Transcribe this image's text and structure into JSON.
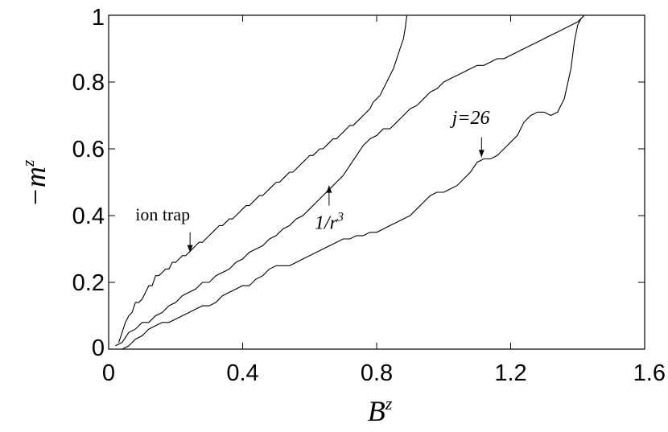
{
  "chart_data": {
    "type": "line",
    "xlabel": {
      "base": "B",
      "sup": "z"
    },
    "ylabel": {
      "base": "−m",
      "sup": "z"
    },
    "xlim": [
      0,
      1.6
    ],
    "ylim": [
      0,
      1
    ],
    "xticks": [
      0,
      0.4,
      0.8,
      1.2,
      1.6
    ],
    "xtick_labels": [
      "0",
      "0.4",
      "0.8",
      "1.2",
      "1.6"
    ],
    "yticks": [
      0,
      0.2,
      0.4,
      0.6,
      0.8,
      1
    ],
    "ytick_labels": [
      "0",
      "0.2",
      "0.4",
      "0.6",
      "0.8",
      "1"
    ],
    "grid": false,
    "legend": "none",
    "annotations": [
      {
        "id": "ion-trap",
        "text": "ion trap",
        "style": "roman",
        "arrow_tip": [
          0.243,
          0.29
        ],
        "arrow_tail": [
          0.243,
          0.35
        ],
        "text_at": [
          0.08,
          0.385
        ]
      },
      {
        "id": "inverse-cube",
        "text": "1/r",
        "sup": "3",
        "style": "italic",
        "arrow_tip": [
          0.658,
          0.49
        ],
        "arrow_tail": [
          0.658,
          0.43
        ],
        "text_at": [
          0.615,
          0.36
        ]
      },
      {
        "id": "j26",
        "text": "j=26",
        "style": "italic",
        "arrow_tip": [
          1.113,
          0.575
        ],
        "arrow_tail": [
          1.113,
          0.635
        ],
        "text_at": [
          1.025,
          0.675
        ]
      }
    ],
    "series": [
      {
        "x": [
          0.03,
          0.04,
          0.05,
          0.06,
          0.07,
          0.08,
          0.09,
          0.1,
          0.11,
          0.12,
          0.13,
          0.14,
          0.15,
          0.16,
          0.17,
          0.18,
          0.19,
          0.2,
          0.21,
          0.22,
          0.23,
          0.24,
          0.25,
          0.26,
          0.27,
          0.28,
          0.29,
          0.3,
          0.31,
          0.32,
          0.33,
          0.34,
          0.35,
          0.36,
          0.37,
          0.38,
          0.39,
          0.4,
          0.41,
          0.42,
          0.43,
          0.44,
          0.45,
          0.46,
          0.47,
          0.48,
          0.49,
          0.5,
          0.51,
          0.52,
          0.53,
          0.54,
          0.55,
          0.56,
          0.57,
          0.58,
          0.59,
          0.6,
          0.61,
          0.62,
          0.63,
          0.64,
          0.65,
          0.66,
          0.67,
          0.68,
          0.69,
          0.7,
          0.71,
          0.72,
          0.73,
          0.74,
          0.75,
          0.76,
          0.77,
          0.78,
          0.79,
          0.8,
          0.81,
          0.82,
          0.83,
          0.84,
          0.85,
          0.86,
          0.87,
          0.88,
          0.885,
          0.89,
          0.9,
          1.0,
          1.1,
          1.2,
          1.3,
          1.4,
          1.5,
          1.6
        ],
        "y": [
          0.02,
          0.05,
          0.08,
          0.1,
          0.11,
          0.14,
          0.14,
          0.15,
          0.17,
          0.19,
          0.19,
          0.22,
          0.22,
          0.23,
          0.24,
          0.24,
          0.26,
          0.26,
          0.27,
          0.28,
          0.28,
          0.29,
          0.3,
          0.31,
          0.32,
          0.32,
          0.33,
          0.34,
          0.35,
          0.36,
          0.37,
          0.37,
          0.38,
          0.39,
          0.39,
          0.4,
          0.41,
          0.42,
          0.43,
          0.43,
          0.44,
          0.45,
          0.46,
          0.46,
          0.47,
          0.48,
          0.49,
          0.5,
          0.5,
          0.51,
          0.52,
          0.53,
          0.53,
          0.54,
          0.55,
          0.56,
          0.57,
          0.58,
          0.58,
          0.59,
          0.6,
          0.6,
          0.61,
          0.62,
          0.63,
          0.63,
          0.64,
          0.65,
          0.66,
          0.67,
          0.67,
          0.68,
          0.69,
          0.7,
          0.71,
          0.72,
          0.74,
          0.75,
          0.76,
          0.78,
          0.8,
          0.82,
          0.84,
          0.87,
          0.9,
          0.93,
          0.96,
          1.0,
          1.0,
          1.0,
          1.0,
          1.0,
          1.0,
          1.0,
          1.0,
          1.0
        ]
      },
      {
        "x": [
          0.02,
          0.04,
          0.06,
          0.08,
          0.1,
          0.12,
          0.14,
          0.16,
          0.18,
          0.2,
          0.22,
          0.24,
          0.26,
          0.28,
          0.3,
          0.32,
          0.34,
          0.36,
          0.38,
          0.4,
          0.42,
          0.44,
          0.46,
          0.48,
          0.5,
          0.52,
          0.54,
          0.56,
          0.58,
          0.6,
          0.62,
          0.64,
          0.66,
          0.68,
          0.7,
          0.72,
          0.74,
          0.76,
          0.78,
          0.8,
          0.82,
          0.84,
          0.86,
          0.88,
          0.9,
          0.92,
          0.94,
          0.96,
          0.98,
          1.0,
          1.02,
          1.04,
          1.06,
          1.08,
          1.1,
          1.12,
          1.14,
          1.16,
          1.18,
          1.2,
          1.22,
          1.24,
          1.26,
          1.28,
          1.3,
          1.32,
          1.34,
          1.36,
          1.38,
          1.4,
          1.42,
          1.44,
          1.46,
          1.48,
          1.5,
          1.52,
          1.54,
          1.56,
          1.58,
          1.6
        ],
        "y": [
          0.01,
          0.02,
          0.05,
          0.06,
          0.08,
          0.08,
          0.1,
          0.11,
          0.13,
          0.14,
          0.16,
          0.17,
          0.18,
          0.2,
          0.2,
          0.22,
          0.23,
          0.24,
          0.26,
          0.27,
          0.29,
          0.3,
          0.31,
          0.33,
          0.34,
          0.36,
          0.37,
          0.39,
          0.4,
          0.42,
          0.44,
          0.46,
          0.48,
          0.5,
          0.52,
          0.55,
          0.58,
          0.61,
          0.63,
          0.64,
          0.66,
          0.66,
          0.68,
          0.7,
          0.72,
          0.73,
          0.75,
          0.77,
          0.78,
          0.8,
          0.81,
          0.82,
          0.83,
          0.84,
          0.85,
          0.85,
          0.86,
          0.87,
          0.87,
          0.88,
          0.89,
          0.9,
          0.91,
          0.92,
          0.93,
          0.94,
          0.95,
          0.96,
          0.97,
          0.98,
          1.0,
          1.0,
          1.0,
          1.0,
          1.0,
          1.0,
          1.0,
          1.0,
          1.0,
          1.0
        ]
      },
      {
        "x": [
          0.02,
          0.04,
          0.06,
          0.08,
          0.1,
          0.12,
          0.14,
          0.16,
          0.18,
          0.2,
          0.22,
          0.24,
          0.26,
          0.28,
          0.3,
          0.32,
          0.34,
          0.36,
          0.38,
          0.4,
          0.42,
          0.44,
          0.46,
          0.48,
          0.5,
          0.52,
          0.54,
          0.56,
          0.58,
          0.6,
          0.62,
          0.64,
          0.66,
          0.68,
          0.7,
          0.72,
          0.74,
          0.76,
          0.78,
          0.8,
          0.82,
          0.84,
          0.86,
          0.88,
          0.9,
          0.92,
          0.94,
          0.96,
          0.98,
          1.0,
          1.02,
          1.04,
          1.06,
          1.08,
          1.1,
          1.12,
          1.14,
          1.16,
          1.18,
          1.2,
          1.22,
          1.24,
          1.26,
          1.28,
          1.3,
          1.32,
          1.34,
          1.36,
          1.38,
          1.39,
          1.4,
          1.41,
          1.42,
          1.44,
          1.46,
          1.48,
          1.5,
          1.52,
          1.54,
          1.56,
          1.58,
          1.6
        ],
        "y": [
          0.0,
          0.0,
          0.01,
          0.03,
          0.04,
          0.06,
          0.07,
          0.08,
          0.08,
          0.09,
          0.1,
          0.11,
          0.12,
          0.13,
          0.13,
          0.14,
          0.16,
          0.17,
          0.18,
          0.19,
          0.19,
          0.21,
          0.22,
          0.24,
          0.25,
          0.25,
          0.25,
          0.26,
          0.27,
          0.28,
          0.29,
          0.3,
          0.31,
          0.32,
          0.33,
          0.33,
          0.34,
          0.34,
          0.35,
          0.35,
          0.36,
          0.37,
          0.38,
          0.39,
          0.4,
          0.42,
          0.44,
          0.46,
          0.47,
          0.47,
          0.48,
          0.49,
          0.51,
          0.53,
          0.56,
          0.57,
          0.57,
          0.58,
          0.6,
          0.62,
          0.64,
          0.68,
          0.7,
          0.71,
          0.71,
          0.7,
          0.71,
          0.75,
          0.84,
          0.92,
          0.97,
          0.99,
          1.0,
          1.0,
          1.0,
          1.0,
          1.0,
          1.0,
          1.0,
          1.0,
          1.0,
          1.0
        ]
      }
    ]
  }
}
